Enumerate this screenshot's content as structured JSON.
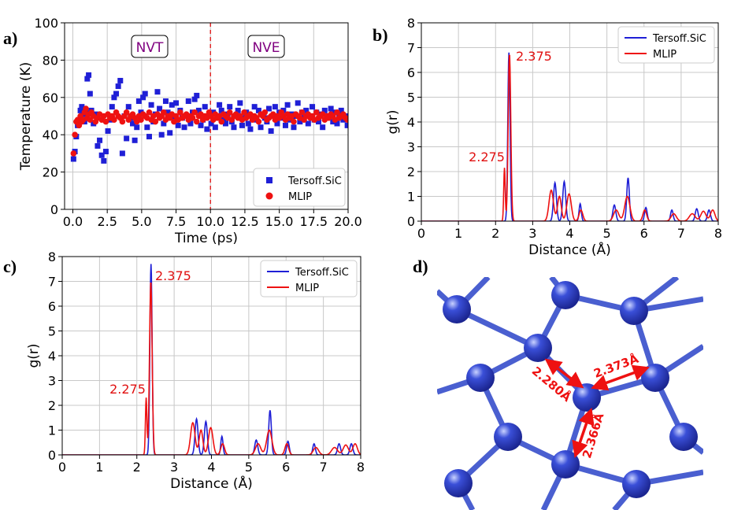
{
  "figure": {
    "panel_labels": [
      "a)",
      "b)",
      "c)",
      "d)"
    ]
  },
  "chart_data": [
    {
      "id": "a",
      "type": "scatter",
      "xlabel": "Time (ps)",
      "ylabel": "Temperature (K)",
      "xlim": [
        -0.6,
        20.0
      ],
      "ylim": [
        0,
        100
      ],
      "xticks": [
        0.0,
        2.5,
        5.0,
        7.5,
        10.0,
        12.5,
        15.0,
        17.5,
        20.0
      ],
      "xtick_labels": [
        "0.0",
        "2.5",
        "5.0",
        "7.5",
        "10.0",
        "12.5",
        "15.0",
        "17.5",
        "20.0"
      ],
      "yticks": [
        0,
        20,
        40,
        60,
        80,
        100
      ],
      "ytick_labels": [
        "0",
        "20",
        "40",
        "60",
        "80",
        "100"
      ],
      "grid": true,
      "legend": "lower-right",
      "divider_x": 10.0,
      "annotations": [
        "NVT",
        "NVE"
      ],
      "series": [
        {
          "name": "Tersoff.SiC",
          "color": "#1f1fd6",
          "marker": "square",
          "x": [
            0.05,
            0.15,
            0.25,
            0.35,
            0.45,
            0.55,
            0.65,
            0.75,
            0.85,
            0.95,
            1.05,
            1.15,
            1.25,
            1.35,
            1.5,
            1.65,
            1.8,
            1.95,
            2.1,
            2.25,
            2.4,
            2.55,
            2.7,
            2.85,
            3.0,
            3.15,
            3.3,
            3.45,
            3.6,
            3.75,
            3.9,
            4.05,
            4.2,
            4.35,
            4.5,
            4.65,
            4.8,
            4.95,
            5.1,
            5.25,
            5.4,
            5.55,
            5.7,
            5.85,
            6.0,
            6.15,
            6.3,
            6.45,
            6.6,
            6.75,
            6.9,
            7.05,
            7.2,
            7.35,
            7.5,
            7.65,
            7.8,
            7.95,
            8.1,
            8.25,
            8.4,
            8.55,
            8.7,
            8.85,
            9.0,
            9.15,
            9.3,
            9.45,
            9.6,
            9.75,
            9.9,
            10.05,
            10.2,
            10.35,
            10.5,
            10.65,
            10.8,
            10.95,
            11.1,
            11.25,
            11.4,
            11.55,
            11.7,
            11.85,
            12.0,
            12.15,
            12.3,
            12.45,
            12.6,
            12.75,
            12.9,
            13.05,
            13.2,
            13.35,
            13.5,
            13.65,
            13.8,
            13.95,
            14.1,
            14.25,
            14.4,
            14.55,
            14.7,
            14.85,
            15.0,
            15.15,
            15.3,
            15.45,
            15.6,
            15.75,
            15.9,
            16.05,
            16.2,
            16.35,
            16.5,
            16.65,
            16.8,
            16.95,
            17.1,
            17.25,
            17.4,
            17.55,
            17.7,
            17.85,
            18.0,
            18.15,
            18.3,
            18.45,
            18.6,
            18.75,
            18.9,
            19.05,
            19.2,
            19.35,
            19.5,
            19.65,
            19.8,
            19.95
          ],
          "y": [
            27,
            31,
            39,
            45,
            48,
            53,
            55,
            51,
            47,
            53,
            70,
            72,
            62,
            53,
            46,
            51,
            34,
            37,
            29,
            26,
            31,
            42,
            48,
            55,
            60,
            62,
            66,
            69,
            30,
            50,
            38,
            55,
            49,
            46,
            37,
            44,
            58,
            52,
            60,
            62,
            44,
            39,
            56,
            47,
            51,
            63,
            54,
            40,
            46,
            58,
            52,
            41,
            56,
            49,
            57,
            45,
            53,
            49,
            44,
            50,
            58,
            46,
            52,
            59,
            61,
            53,
            45,
            48,
            55,
            43,
            50,
            46,
            52,
            44,
            49,
            56,
            53,
            48,
            46,
            51,
            55,
            47,
            44,
            50,
            53,
            57,
            45,
            49,
            52,
            46,
            43,
            50,
            55,
            48,
            53,
            44,
            51,
            49,
            47,
            54,
            42,
            50,
            55,
            46,
            52,
            49,
            53,
            45,
            56,
            48,
            51,
            44,
            50,
            57,
            47,
            52,
            49,
            53,
            46,
            50,
            55,
            48,
            52,
            47,
            51,
            44,
            53,
            49,
            50,
            54,
            47,
            52,
            46,
            51,
            53,
            48,
            50,
            45
          ]
        },
        {
          "name": "MLIP",
          "color": "#ee1111",
          "marker": "circle",
          "x": [
            0.05,
            0.15,
            0.25,
            0.35,
            0.45,
            0.55,
            0.65,
            0.75,
            0.85,
            0.95,
            1.05,
            1.15,
            1.25,
            1.35,
            1.5,
            1.65,
            1.8,
            1.95,
            2.1,
            2.25,
            2.4,
            2.55,
            2.7,
            2.85,
            3.0,
            3.15,
            3.3,
            3.45,
            3.6,
            3.75,
            3.9,
            4.05,
            4.2,
            4.35,
            4.5,
            4.65,
            4.8,
            4.95,
            5.1,
            5.25,
            5.4,
            5.55,
            5.7,
            5.85,
            6.0,
            6.15,
            6.3,
            6.45,
            6.6,
            6.75,
            6.9,
            7.05,
            7.2,
            7.35,
            7.5,
            7.65,
            7.8,
            7.95,
            8.1,
            8.25,
            8.4,
            8.55,
            8.7,
            8.85,
            9.0,
            9.15,
            9.3,
            9.45,
            9.6,
            9.75,
            9.9,
            10.05,
            10.2,
            10.35,
            10.5,
            10.65,
            10.8,
            10.95,
            11.1,
            11.25,
            11.4,
            11.55,
            11.7,
            11.85,
            12.0,
            12.15,
            12.3,
            12.45,
            12.6,
            12.75,
            12.9,
            13.05,
            13.2,
            13.35,
            13.5,
            13.65,
            13.8,
            13.95,
            14.1,
            14.25,
            14.4,
            14.55,
            14.7,
            14.85,
            15.0,
            15.15,
            15.3,
            15.45,
            15.6,
            15.75,
            15.9,
            16.05,
            16.2,
            16.35,
            16.5,
            16.65,
            16.8,
            16.95,
            17.1,
            17.25,
            17.4,
            17.55,
            17.7,
            17.85,
            18.0,
            18.15,
            18.3,
            18.45,
            18.6,
            18.75,
            18.9,
            19.05,
            19.2,
            19.35,
            19.5,
            19.65,
            19.8,
            19.95
          ],
          "y": [
            30,
            40,
            47,
            48,
            45,
            50,
            47,
            48,
            52,
            54,
            49,
            51,
            48,
            52,
            50,
            47,
            49,
            51,
            48,
            50,
            47,
            51,
            49,
            50,
            48,
            52,
            50,
            49,
            47,
            50,
            52,
            48,
            50,
            51,
            49,
            47,
            50,
            48,
            51,
            50,
            49,
            52,
            48,
            50,
            47,
            51,
            49,
            50,
            52,
            48,
            50,
            49,
            51,
            47,
            50,
            48,
            52,
            49,
            50,
            51,
            48,
            50,
            49,
            52,
            47,
            50,
            51,
            48,
            50,
            49,
            52,
            50,
            48,
            51,
            49,
            50,
            47,
            51,
            50,
            49,
            52,
            48,
            50,
            51,
            49,
            50,
            48,
            52,
            49,
            50,
            51,
            48,
            50,
            49,
            47,
            51,
            50,
            52,
            48,
            49,
            50,
            51,
            48,
            50,
            49,
            52,
            50,
            48,
            51,
            49,
            50,
            47,
            51,
            50,
            49,
            52,
            48,
            50,
            51,
            49,
            50,
            48,
            52,
            49,
            50,
            51,
            48,
            50,
            49,
            51,
            50,
            48,
            52,
            49,
            50,
            51,
            49,
            48
          ]
        }
      ]
    },
    {
      "id": "b",
      "type": "line",
      "xlabel": "Distance (Å)",
      "ylabel": "g(r)",
      "xlim": [
        0,
        8
      ],
      "ylim": [
        0,
        8
      ],
      "xticks": [
        0,
        1,
        2,
        3,
        4,
        5,
        6,
        7,
        8
      ],
      "xtick_labels": [
        "0",
        "1",
        "2",
        "3",
        "4",
        "5",
        "6",
        "7",
        "8"
      ],
      "yticks": [
        0,
        1,
        2,
        3,
        4,
        5,
        6,
        7,
        8
      ],
      "ytick_labels": [
        "0",
        "1",
        "2",
        "3",
        "4",
        "5",
        "6",
        "7",
        "8"
      ],
      "grid": true,
      "legend": "top-right",
      "annotations": [
        {
          "text": "2.375",
          "x": 2.375,
          "y": 6.75
        },
        {
          "text": "2.275",
          "x": 2.275,
          "y": 2.2
        }
      ],
      "peaks": [
        {
          "name": "Tersoff.SiC",
          "color": "#1f1fd6",
          "centers": [
            2.36,
            3.6,
            3.85,
            4.28,
            5.2,
            5.57,
            6.05,
            6.75,
            7.42,
            7.75
          ],
          "heights": [
            6.8,
            1.55,
            1.6,
            0.7,
            0.65,
            1.75,
            0.55,
            0.45,
            0.5,
            0.45
          ],
          "widths": [
            0.03,
            0.04,
            0.04,
            0.03,
            0.04,
            0.035,
            0.035,
            0.035,
            0.04,
            0.04
          ]
        },
        {
          "name": "MLIP",
          "color": "#ee1111",
          "centers": [
            2.24,
            2.375,
            3.5,
            3.72,
            3.98,
            4.3,
            5.25,
            5.55,
            6.02,
            6.8,
            7.3,
            7.6,
            7.85
          ],
          "heights": [
            2.15,
            6.75,
            1.25,
            1.0,
            1.1,
            0.45,
            0.45,
            1.0,
            0.45,
            0.3,
            0.3,
            0.4,
            0.45
          ],
          "widths": [
            0.02,
            0.035,
            0.06,
            0.05,
            0.06,
            0.05,
            0.07,
            0.07,
            0.05,
            0.07,
            0.08,
            0.07,
            0.06
          ]
        }
      ]
    },
    {
      "id": "c",
      "type": "line",
      "xlabel": "Distance (Å)",
      "ylabel": "g(r)",
      "xlim": [
        0,
        8
      ],
      "ylim": [
        0,
        8
      ],
      "xticks": [
        0,
        1,
        2,
        3,
        4,
        5,
        6,
        7,
        8
      ],
      "xtick_labels": [
        "0",
        "1",
        "2",
        "3",
        "4",
        "5",
        "6",
        "7",
        "8"
      ],
      "yticks": [
        0,
        1,
        2,
        3,
        4,
        5,
        6,
        7,
        8
      ],
      "ytick_labels": [
        "0",
        "1",
        "2",
        "3",
        "4",
        "5",
        "6",
        "7",
        "8"
      ],
      "grid": true,
      "legend": "top-right",
      "annotations": [
        {
          "text": "2.375",
          "x": 2.375,
          "y": 7.0
        },
        {
          "text": "2.275",
          "x": 2.275,
          "y": 2.3
        }
      ],
      "peaks": [
        {
          "name": "Tersoff.SiC",
          "color": "#1f1fd6",
          "centers": [
            2.38,
            3.6,
            3.85,
            4.28,
            5.2,
            5.57,
            6.05,
            6.75,
            7.42,
            7.75
          ],
          "heights": [
            7.7,
            1.45,
            1.35,
            0.75,
            0.6,
            1.8,
            0.55,
            0.45,
            0.45,
            0.45
          ],
          "widths": [
            0.03,
            0.04,
            0.04,
            0.03,
            0.04,
            0.035,
            0.035,
            0.035,
            0.04,
            0.04
          ]
        },
        {
          "name": "MLIP",
          "color": "#ee1111",
          "centers": [
            2.25,
            2.375,
            3.5,
            3.72,
            3.98,
            4.3,
            5.25,
            5.55,
            6.02,
            6.8,
            7.3,
            7.6,
            7.85
          ],
          "heights": [
            2.3,
            7.0,
            1.3,
            1.0,
            1.1,
            0.45,
            0.45,
            1.0,
            0.45,
            0.3,
            0.3,
            0.4,
            0.45
          ],
          "widths": [
            0.02,
            0.035,
            0.06,
            0.05,
            0.06,
            0.05,
            0.07,
            0.07,
            0.05,
            0.07,
            0.08,
            0.07,
            0.06
          ]
        }
      ]
    }
  ],
  "structure": {
    "bond_labels": [
      "2.280Å",
      "2.373Å",
      "2.366Å"
    ],
    "atom_color": "#3a4fd8",
    "bond_color": "#4a5fd0",
    "arrow_color": "#ee1111"
  }
}
